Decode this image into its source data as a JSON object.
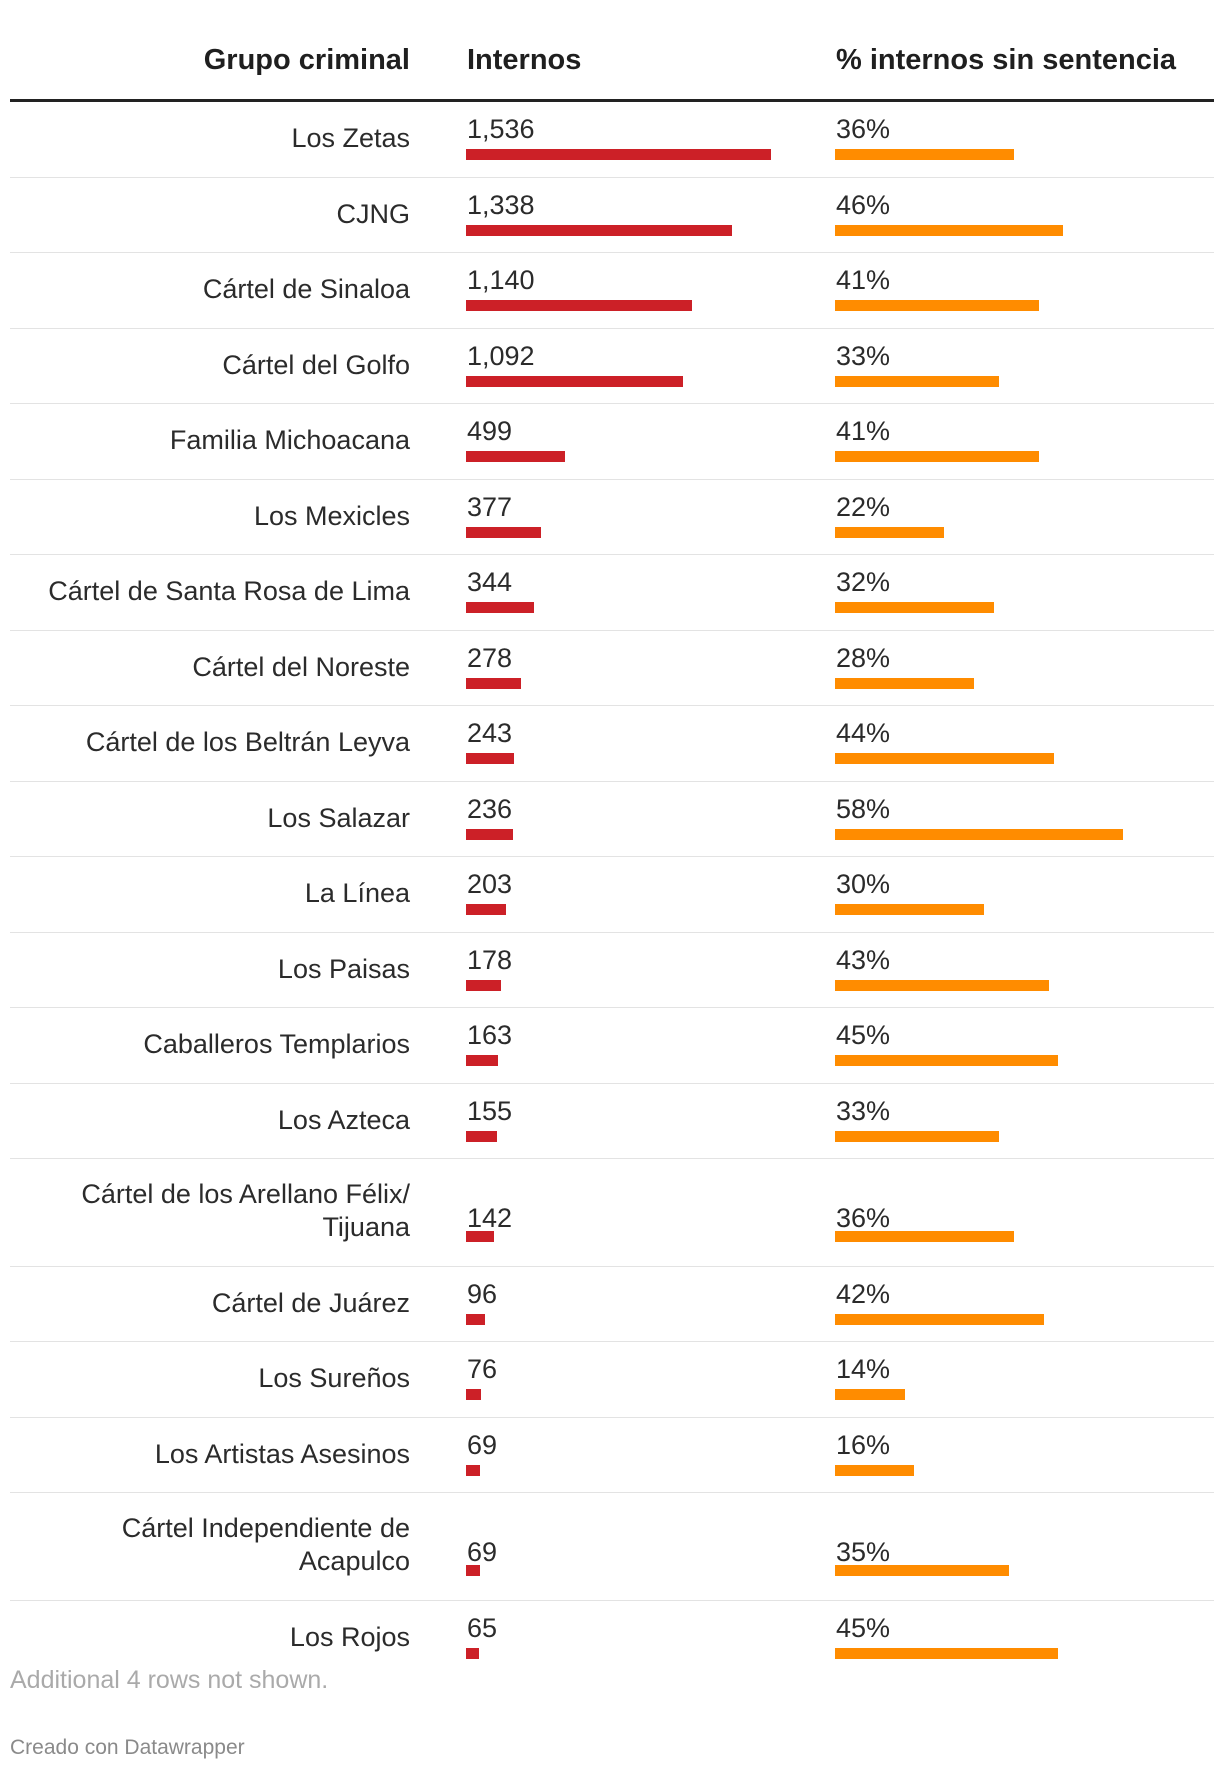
{
  "chart_data": {
    "type": "table",
    "columns": [
      "Grupo criminal",
      "Internos",
      "% internos sin sentencia"
    ],
    "rows": [
      {
        "group": "Los Zetas",
        "internos": 1536,
        "internos_label": "1,536",
        "pct": 36,
        "pct_label": "36%"
      },
      {
        "group": "CJNG",
        "internos": 1338,
        "internos_label": "1,338",
        "pct": 46,
        "pct_label": "46%"
      },
      {
        "group": "Cártel de Sinaloa",
        "internos": 1140,
        "internos_label": "1,140",
        "pct": 41,
        "pct_label": "41%"
      },
      {
        "group": "Cártel del Golfo",
        "internos": 1092,
        "internos_label": "1,092",
        "pct": 33,
        "pct_label": "33%"
      },
      {
        "group": "Familia Michoacana",
        "internos": 499,
        "internos_label": "499",
        "pct": 41,
        "pct_label": "41%"
      },
      {
        "group": "Los Mexicles",
        "internos": 377,
        "internos_label": "377",
        "pct": 22,
        "pct_label": "22%"
      },
      {
        "group": "Cártel de Santa Rosa de Lima",
        "internos": 344,
        "internos_label": "344",
        "pct": 32,
        "pct_label": "32%"
      },
      {
        "group": "Cártel del Noreste",
        "internos": 278,
        "internos_label": "278",
        "pct": 28,
        "pct_label": "28%"
      },
      {
        "group": "Cártel de los Beltrán Leyva",
        "internos": 243,
        "internos_label": "243",
        "pct": 44,
        "pct_label": "44%"
      },
      {
        "group": "Los Salazar",
        "internos": 236,
        "internos_label": "236",
        "pct": 58,
        "pct_label": "58%"
      },
      {
        "group": "La Línea",
        "internos": 203,
        "internos_label": "203",
        "pct": 30,
        "pct_label": "30%"
      },
      {
        "group": "Los Paisas",
        "internos": 178,
        "internos_label": "178",
        "pct": 43,
        "pct_label": "43%"
      },
      {
        "group": "Caballeros Templarios",
        "internos": 163,
        "internos_label": "163",
        "pct": 45,
        "pct_label": "45%"
      },
      {
        "group": "Los Azteca",
        "internos": 155,
        "internos_label": "155",
        "pct": 33,
        "pct_label": "33%"
      },
      {
        "group": "Cártel de los Arellano Félix/ Tijuana",
        "internos": 142,
        "internos_label": "142",
        "pct": 36,
        "pct_label": "36%"
      },
      {
        "group": "Cártel de Juárez",
        "internos": 96,
        "internos_label": "96",
        "pct": 42,
        "pct_label": "42%"
      },
      {
        "group": "Los Sureños",
        "internos": 76,
        "internos_label": "76",
        "pct": 14,
        "pct_label": "14%"
      },
      {
        "group": "Los Artistas Asesinos",
        "internos": 69,
        "internos_label": "69",
        "pct": 16,
        "pct_label": "16%"
      },
      {
        "group": "Cártel Independiente de Acapulco",
        "internos": 69,
        "internos_label": "69",
        "pct": 35,
        "pct_label": "35%"
      },
      {
        "group": "Los Rojos",
        "internos": 65,
        "internos_label": "65",
        "pct": 45,
        "pct_label": "45%"
      }
    ],
    "internos_max": 1536,
    "pct_max": 58,
    "colors": {
      "internos_bar": "#cc2027",
      "pct_bar": "#ff8c00"
    }
  },
  "footer": {
    "note": "Additional 4 rows not shown.",
    "credit": "Creado con Datawrapper"
  }
}
